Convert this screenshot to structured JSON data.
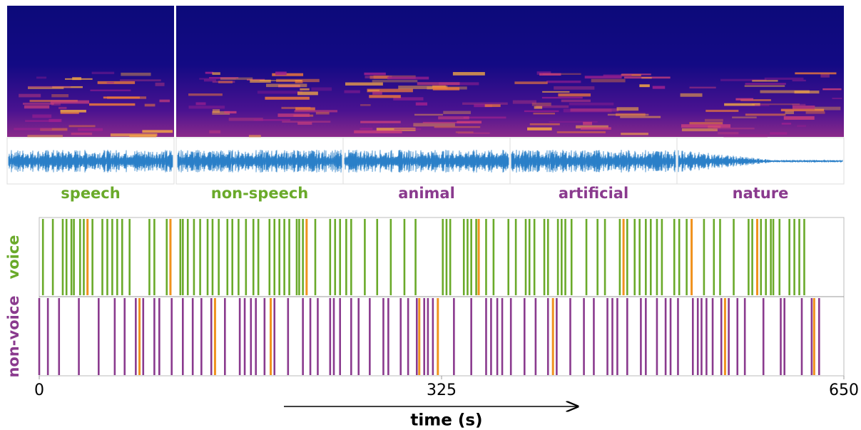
{
  "panels": [
    {
      "label": "speech",
      "color": "#6aaa2a"
    },
    {
      "label": "non-speech",
      "color": "#6aaa2a"
    },
    {
      "label": "animal",
      "color": "#8a3a8e"
    },
    {
      "label": "artificial",
      "color": "#8a3a8e"
    },
    {
      "label": "nature",
      "color": "#8a3a8e"
    }
  ],
  "chart_data": {
    "type": "raster",
    "x_label": "time (s)",
    "xlim": [
      0,
      650
    ],
    "xticks": [
      0,
      325,
      650
    ],
    "highlight_color": "#f0921e",
    "series": [
      {
        "name": "voice",
        "color": "#6aaa2a",
        "values": [
          3,
          11,
          19,
          22,
          26,
          28,
          33,
          36,
          43,
          51,
          55,
          59,
          63,
          67,
          73,
          89,
          93,
          103,
          114,
          116,
          120,
          125,
          130,
          136,
          140,
          145,
          152,
          156,
          161,
          167,
          173,
          177,
          186,
          190,
          194,
          198,
          202,
          208,
          210,
          213,
          223,
          235,
          239,
          243,
          248,
          252,
          263,
          273,
          284,
          295,
          304,
          326,
          329,
          332,
          343,
          346,
          349,
          353,
          361,
          367,
          379,
          385,
          393,
          396,
          400,
          408,
          411,
          419,
          422,
          425,
          430,
          442,
          451,
          457,
          469,
          475,
          481,
          485,
          490,
          494,
          499,
          503,
          513,
          517,
          523,
          537,
          545,
          550,
          561,
          573,
          576,
          583,
          587,
          591,
          593,
          598,
          606,
          610,
          614,
          618
        ],
        "highlighted_values": [
          39,
          106,
          216,
          355,
          472,
          527,
          580
        ]
      },
      {
        "name": "non-voice",
        "color": "#8a3a8e",
        "values": [
          0,
          7,
          16,
          32,
          48,
          61,
          69,
          78,
          84,
          93,
          97,
          107,
          116,
          124,
          131,
          139,
          150,
          162,
          166,
          171,
          175,
          182,
          190,
          201,
          213,
          219,
          225,
          235,
          238,
          243,
          252,
          258,
          267,
          278,
          282,
          292,
          298,
          305,
          311,
          314,
          318,
          335,
          349,
          361,
          365,
          370,
          374,
          381,
          392,
          401,
          411,
          418,
          429,
          440,
          448,
          459,
          463,
          467,
          475,
          486,
          490,
          499,
          506,
          510,
          516,
          528,
          532,
          535,
          539,
          544,
          551,
          557,
          564,
          570,
          585,
          599,
          602,
          616,
          624,
          630
        ],
        "highlighted_values": [
          81,
          142,
          187,
          307,
          322,
          415,
          554,
          626
        ]
      }
    ]
  }
}
